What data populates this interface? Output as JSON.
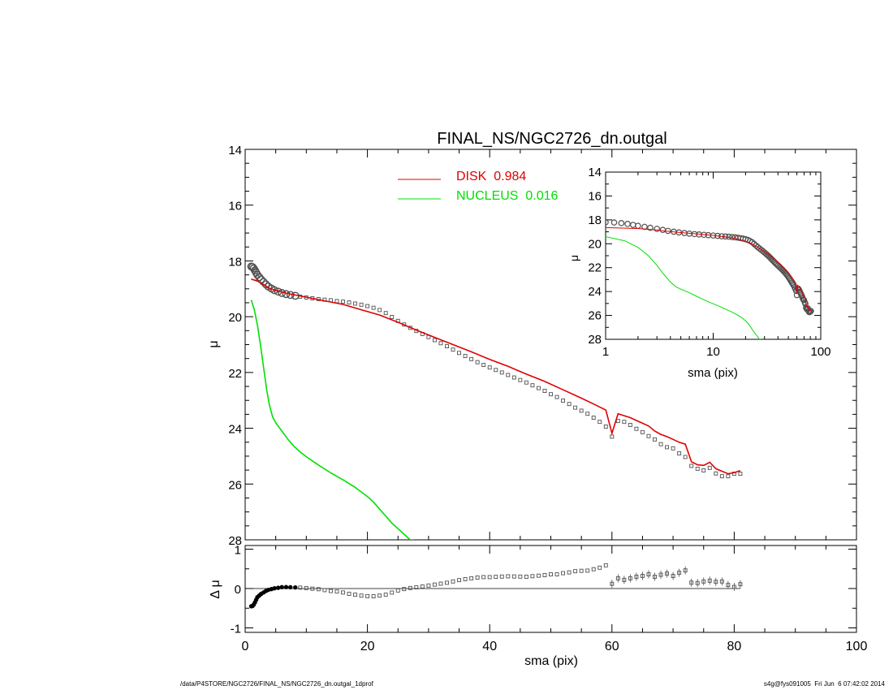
{
  "chart_data": [
    {
      "panel": "main",
      "type": "scatter",
      "title": "FINAL_NS/NGC2726_dn.outgal",
      "xlabel": "",
      "ylabel": "μ",
      "xlim": [
        0,
        100
      ],
      "ylim": [
        28,
        14
      ],
      "yticks": [
        "14",
        "16",
        "18",
        "20",
        "22",
        "24",
        "26",
        "28"
      ],
      "legend": {
        "placement": "top-center",
        "entries": [
          {
            "label": "DISK  0.984",
            "color": "#e00000"
          },
          {
            "label": "NUCLEUS  0.016",
            "color": "#00e000"
          }
        ]
      },
      "series": [
        {
          "kind": "data-points",
          "color": "#505050",
          "x": [
            1.0,
            1.2,
            1.4,
            1.6,
            1.8,
            2.0,
            2.3,
            2.6,
            3.0,
            3.4,
            3.8,
            4.3,
            4.8,
            5.4,
            6.0,
            6.7,
            7.4,
            8.2,
            9.0,
            10,
            11,
            12,
            13,
            14,
            15,
            16,
            17,
            18,
            19,
            20,
            21,
            22,
            23,
            24,
            25,
            26,
            27,
            28,
            29,
            30,
            31,
            32,
            33,
            34,
            35,
            36,
            37,
            38,
            39,
            40,
            41,
            42,
            43,
            44,
            45,
            46,
            47,
            48,
            49,
            50,
            51,
            52,
            53,
            54,
            55,
            56,
            57,
            58,
            59,
            60,
            61,
            62,
            63,
            64,
            65,
            66,
            67,
            68,
            69,
            70,
            71,
            72,
            73,
            74,
            75,
            76,
            77,
            78,
            79,
            80,
            81
          ],
          "y": [
            18.2,
            18.22,
            18.27,
            18.34,
            18.42,
            18.5,
            18.58,
            18.66,
            18.75,
            18.84,
            18.92,
            18.99,
            19.05,
            19.1,
            19.15,
            19.19,
            19.22,
            19.25,
            19.28,
            19.31,
            19.34,
            19.37,
            19.39,
            19.41,
            19.44,
            19.46,
            19.49,
            19.53,
            19.57,
            19.62,
            19.68,
            19.76,
            19.87,
            20.01,
            20.15,
            20.28,
            20.4,
            20.51,
            20.62,
            20.73,
            20.84,
            20.95,
            21.06,
            21.18,
            21.3,
            21.41,
            21.52,
            21.63,
            21.73,
            21.82,
            21.91,
            22.0,
            22.09,
            22.18,
            22.27,
            22.36,
            22.46,
            22.56,
            22.66,
            22.78,
            22.88,
            23.01,
            23.13,
            23.26,
            23.37,
            23.48,
            23.62,
            23.77,
            23.94,
            24.3,
            23.74,
            23.77,
            23.88,
            24.02,
            24.14,
            24.28,
            24.4,
            24.57,
            24.68,
            24.72,
            24.9,
            25.03,
            25.35,
            25.45,
            25.51,
            25.42,
            25.62,
            25.72,
            25.72,
            25.63,
            25.63
          ]
        },
        {
          "kind": "model",
          "name": "DISK",
          "color": "#e00000",
          "x": [
            1,
            2,
            3,
            4,
            5,
            7,
            10,
            13,
            16,
            19,
            22,
            25,
            28,
            31,
            34,
            37,
            40,
            43,
            46,
            49,
            52,
            55,
            57,
            59,
            60,
            61,
            62,
            63,
            64,
            65,
            66,
            67,
            68,
            69,
            70,
            71,
            72,
            73,
            74,
            75,
            76,
            77,
            78,
            79,
            80,
            81
          ],
          "y": [
            18.65,
            18.72,
            18.85,
            18.98,
            19.06,
            19.17,
            19.3,
            19.43,
            19.56,
            19.75,
            19.94,
            20.2,
            20.48,
            20.74,
            21.0,
            21.26,
            21.53,
            21.78,
            22.06,
            22.32,
            22.62,
            22.92,
            23.13,
            23.35,
            24.18,
            23.48,
            23.55,
            23.62,
            23.72,
            23.82,
            23.92,
            24.1,
            24.22,
            24.3,
            24.4,
            24.5,
            24.57,
            25.2,
            25.31,
            25.33,
            25.22,
            25.45,
            25.54,
            25.63,
            25.59,
            25.52
          ]
        },
        {
          "kind": "model",
          "name": "NUCLEUS",
          "color": "#00e000",
          "x": [
            1,
            1.5,
            2,
            2.5,
            3,
            3.5,
            4,
            4.5,
            5,
            6,
            7,
            8,
            9,
            10,
            12,
            14,
            16,
            18,
            20,
            21,
            22,
            23,
            24,
            25,
            26,
            27,
            27.6
          ],
          "y": [
            19.4,
            19.75,
            20.3,
            21.0,
            21.8,
            22.6,
            23.2,
            23.6,
            23.8,
            24.1,
            24.4,
            24.65,
            24.85,
            25.02,
            25.32,
            25.6,
            25.85,
            26.12,
            26.45,
            26.65,
            26.9,
            27.15,
            27.4,
            27.6,
            27.8,
            28.0,
            28.0
          ]
        }
      ]
    },
    {
      "panel": "inset",
      "type": "scatter",
      "xscale": "log",
      "xlim": [
        1,
        100
      ],
      "ylim": [
        28,
        14
      ],
      "xlabel": "sma (pix)",
      "ylabel": "μ",
      "xticks": [
        "1",
        "10",
        "100"
      ],
      "yticks": [
        "14",
        "16",
        "18",
        "20",
        "22",
        "24",
        "26",
        "28"
      ]
    },
    {
      "panel": "residual",
      "type": "scatter",
      "xlim": [
        0,
        100
      ],
      "ylim": [
        -1.2,
        1.0
      ],
      "xlabel": "sma (pix)",
      "ylabel": "Δ μ",
      "xticks": [
        "0",
        "20",
        "40",
        "60",
        "80",
        "100"
      ],
      "yticks": [
        "1",
        "0",
        "-1"
      ]
    }
  ],
  "footer": {
    "left": "/data/P4STORE/NGC2726/FINAL_NS/NGC2726_dn.outgal_1dprof",
    "right": "s4g@fys091005  Fri Jun  6 07:42:02 2014"
  },
  "colors": {
    "data": "#505050",
    "disk": "#e00000",
    "nucleus": "#00e000"
  }
}
